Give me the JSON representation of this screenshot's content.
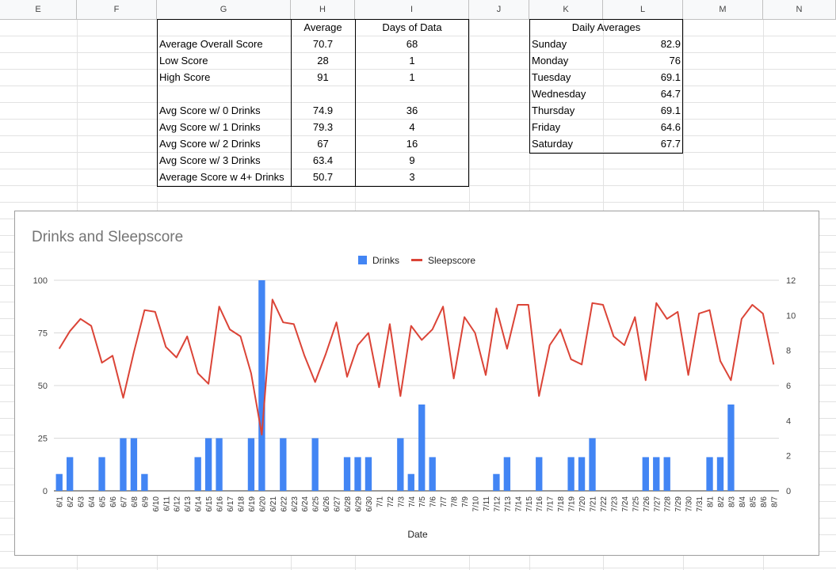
{
  "columns": [
    "E",
    "F",
    "G",
    "H",
    "I",
    "J",
    "K",
    "L",
    "M",
    "N"
  ],
  "stats_table": {
    "headers": [
      "",
      "Average",
      "Days of Data"
    ],
    "rows": [
      [
        "Average Overall Score",
        "70.7",
        "68"
      ],
      [
        "Low Score",
        "28",
        "1"
      ],
      [
        "High Score",
        "91",
        "1"
      ],
      [
        "",
        "",
        ""
      ],
      [
        "Avg Score w/ 0 Drinks",
        "74.9",
        "36"
      ],
      [
        "Avg Score w/ 1 Drinks",
        "79.3",
        "4"
      ],
      [
        "Avg Score w/ 2 Drinks",
        "67",
        "16"
      ],
      [
        "Avg Score w/ 3 Drinks",
        "63.4",
        "9"
      ],
      [
        "Average Score w 4+ Drinks",
        "50.7",
        "3"
      ]
    ]
  },
  "daily_table": {
    "title": "Daily Averages",
    "rows": [
      [
        "Sunday",
        "82.9"
      ],
      [
        "Monday",
        "76"
      ],
      [
        "Tuesday",
        "69.1"
      ],
      [
        "Wednesday",
        "64.7"
      ],
      [
        "Thursday",
        "69.1"
      ],
      [
        "Friday",
        "64.6"
      ],
      [
        "Saturday",
        "67.7"
      ]
    ]
  },
  "chart_data": {
    "type": "bar",
    "title": "Drinks and Sleepscore",
    "xlabel": "Date",
    "ylabel": "",
    "legend_position": "top",
    "ylim_left": [
      0,
      100
    ],
    "yticks_left": [
      "0",
      "25",
      "50",
      "75",
      "100"
    ],
    "ylim_right": [
      0,
      12
    ],
    "yticks_right": [
      "0",
      "2",
      "4",
      "6",
      "8",
      "10",
      "12"
    ],
    "categories": [
      "6/1",
      "6/2",
      "6/3",
      "6/4",
      "6/5",
      "6/6",
      "6/7",
      "6/8",
      "6/9",
      "6/10",
      "6/11",
      "6/12",
      "6/13",
      "6/14",
      "6/15",
      "6/16",
      "6/17",
      "6/18",
      "6/19",
      "6/20",
      "6/21",
      "6/22",
      "6/23",
      "6/24",
      "6/25",
      "6/26",
      "6/27",
      "6/28",
      "6/29",
      "6/30",
      "7/1",
      "7/2",
      "7/3",
      "7/4",
      "7/5",
      "7/6",
      "7/7",
      "7/8",
      "7/9",
      "7/10",
      "7/11",
      "7/12",
      "7/13",
      "7/14",
      "7/15",
      "7/16",
      "7/17",
      "7/18",
      "7/19",
      "7/20",
      "7/21",
      "7/22",
      "7/23",
      "7/24",
      "7/25",
      "7/26",
      "7/27",
      "7/28",
      "7/29",
      "7/30",
      "7/31",
      "8/1",
      "8/2",
      "8/3",
      "8/4",
      "8/5",
      "8/6",
      "8/7"
    ],
    "series": [
      {
        "name": "Drinks",
        "axis": "left",
        "type": "bar",
        "color": "#4285f4",
        "values": [
          8,
          16,
          0,
          0,
          16,
          0,
          25,
          25,
          8,
          0,
          0,
          0,
          0,
          16,
          25,
          25,
          0,
          0,
          25,
          100,
          0,
          25,
          0,
          0,
          25,
          0,
          0,
          16,
          16,
          16,
          0,
          0,
          25,
          8,
          41,
          16,
          0,
          0,
          0,
          0,
          0,
          8,
          16,
          0,
          0,
          16,
          0,
          0,
          16,
          16,
          25,
          0,
          0,
          0,
          0,
          16,
          16,
          16,
          0,
          0,
          0,
          16,
          16,
          41,
          0,
          0,
          0,
          0
        ]
      },
      {
        "name": "Sleepscore",
        "axis": "right",
        "type": "line",
        "color": "#db4437",
        "values": [
          8.1,
          9.1,
          9.8,
          9.4,
          7.3,
          7.7,
          5.3,
          7.9,
          10.3,
          10.2,
          8.2,
          7.6,
          8.8,
          6.7,
          6.1,
          10.5,
          9.2,
          8.8,
          6.7,
          3.2,
          10.9,
          9.6,
          9.5,
          7.7,
          6.2,
          7.8,
          9.6,
          6.5,
          8.3,
          9.0,
          5.9,
          9.5,
          5.4,
          9.4,
          8.6,
          9.2,
          10.5,
          6.4,
          9.9,
          9.0,
          6.6,
          10.4,
          8.1,
          10.6,
          10.6,
          5.4,
          8.3,
          9.2,
          7.5,
          7.2,
          10.7,
          10.6,
          8.8,
          8.3,
          9.9,
          6.3,
          10.7,
          9.8,
          10.2,
          6.6,
          10.1,
          10.3,
          7.4,
          6.3,
          9.8,
          10.6,
          10.1,
          7.2
        ]
      }
    ]
  }
}
